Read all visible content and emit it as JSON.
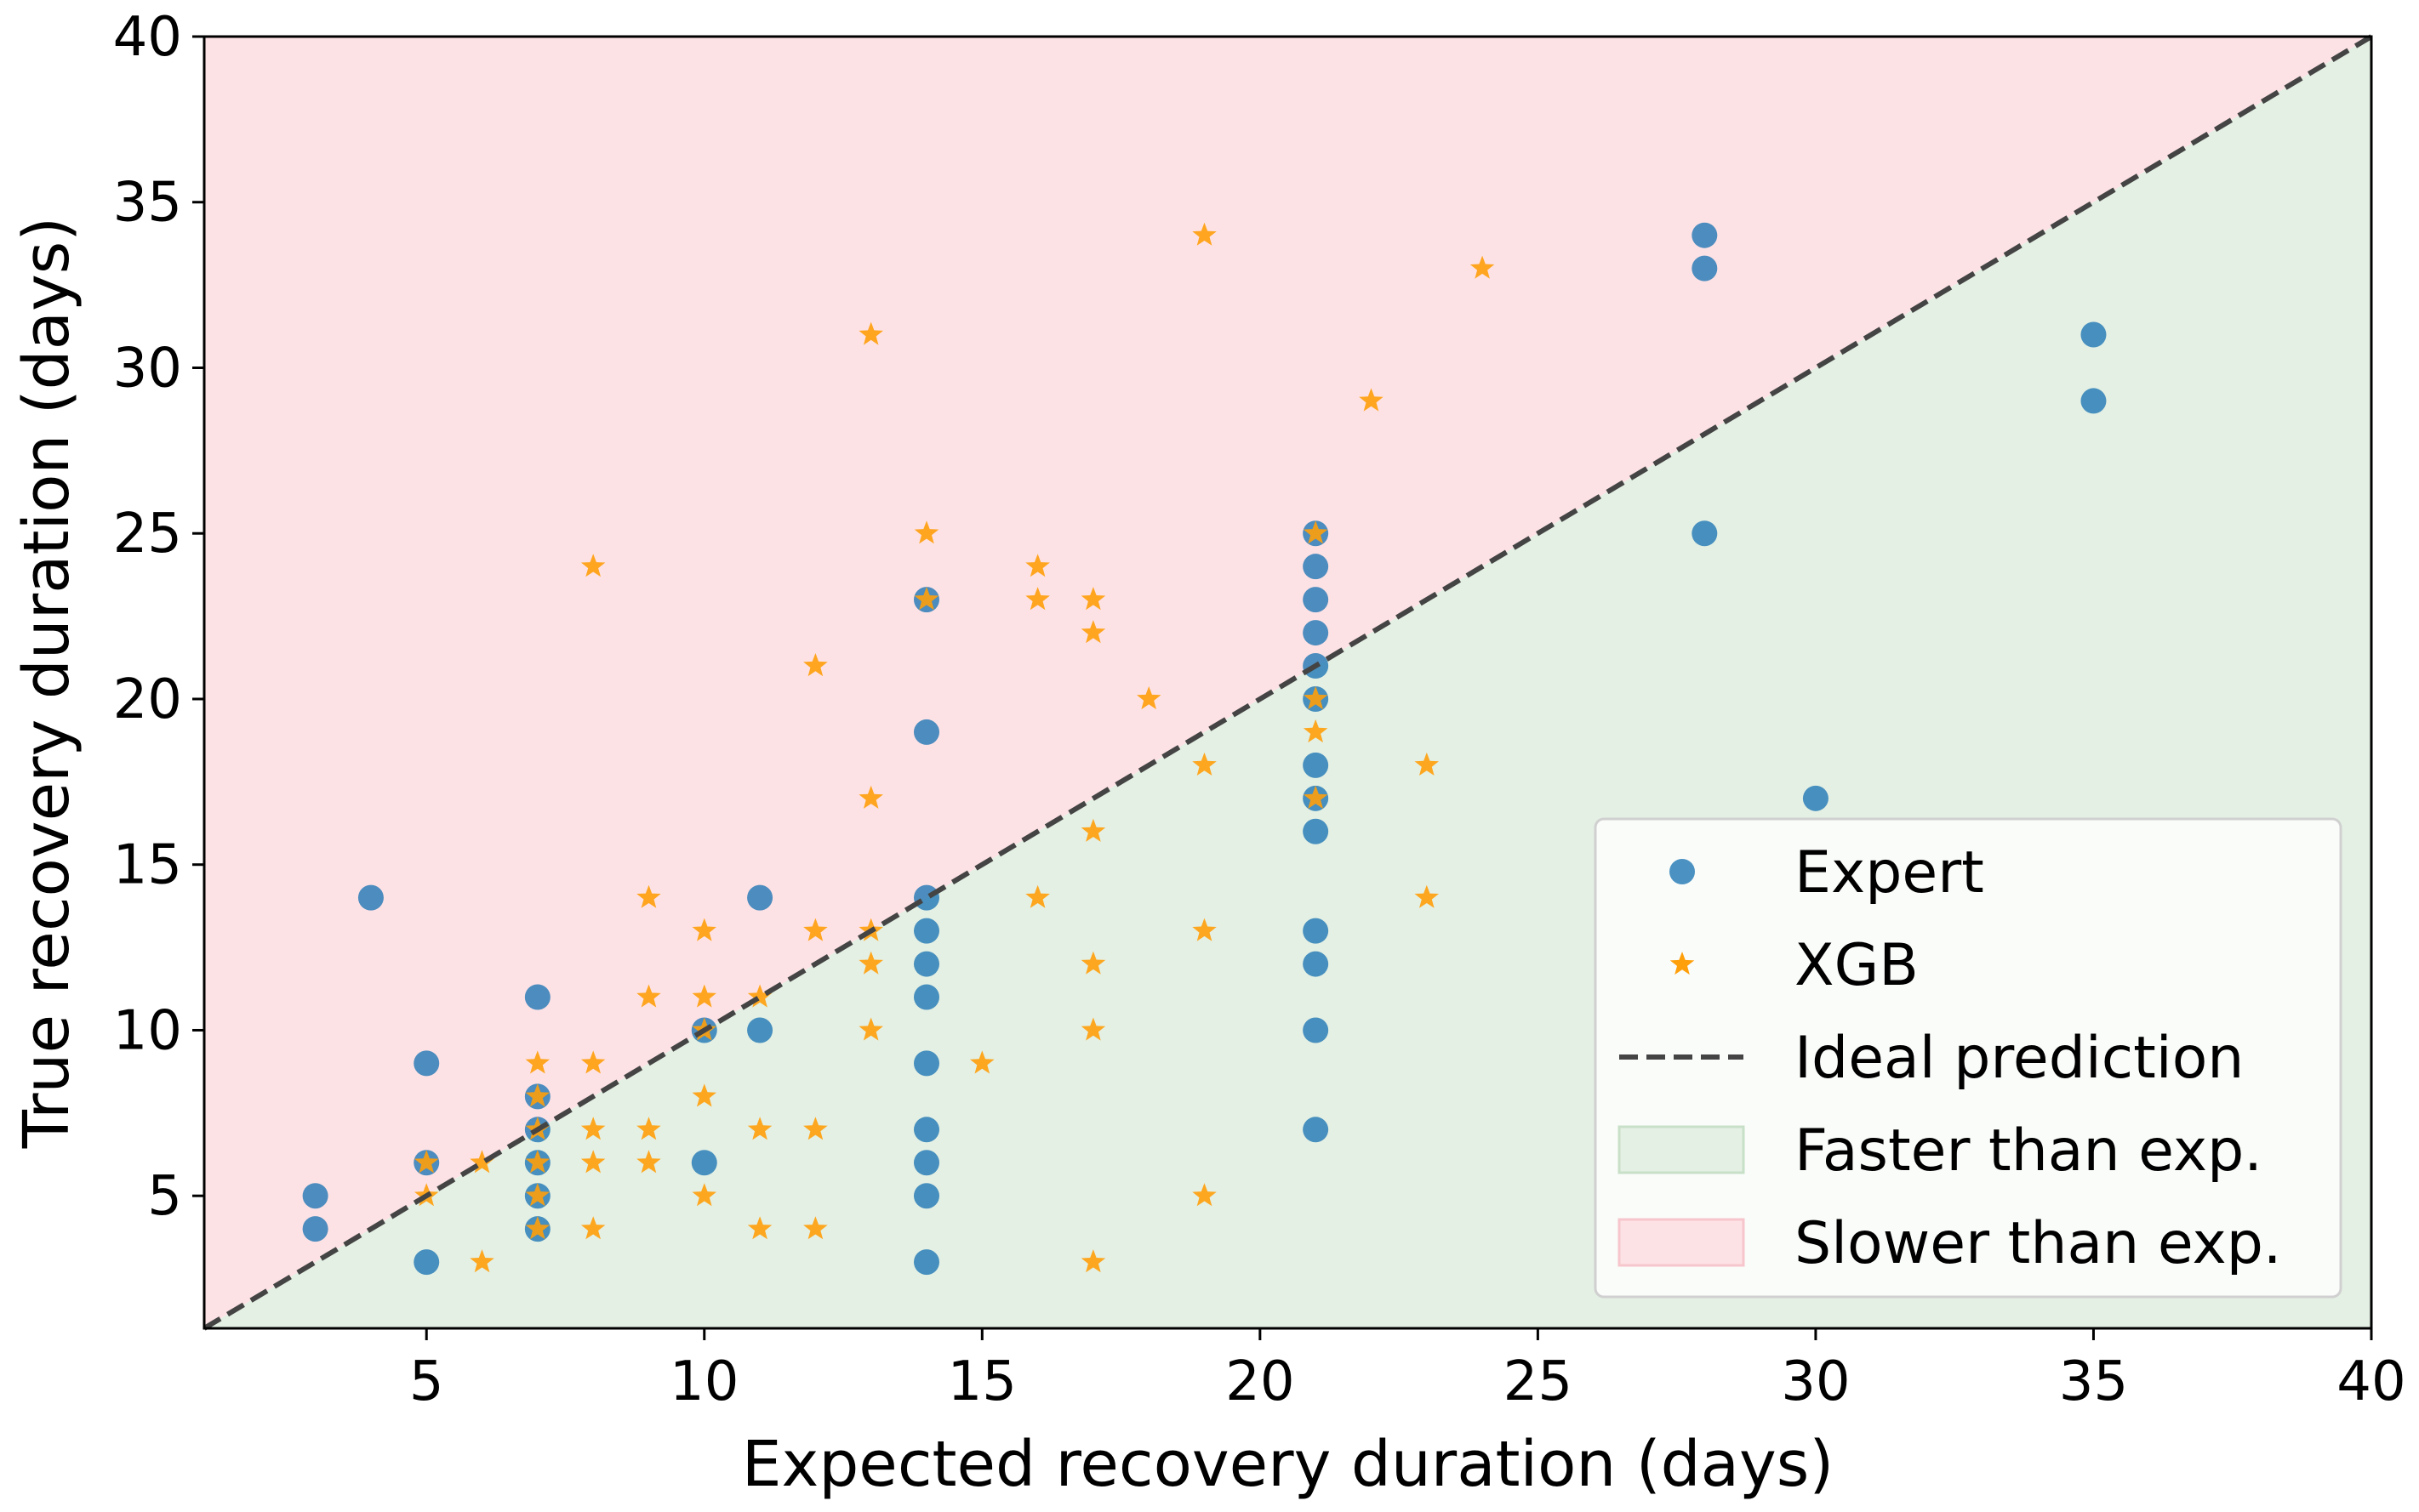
{
  "chart_data": {
    "type": "scatter",
    "title": "",
    "xlabel": "Expected recovery duration (days)",
    "ylabel": "True recovery duration (days)",
    "xlim": [
      1,
      40
    ],
    "ylim": [
      1,
      40
    ],
    "xticks": [
      5,
      10,
      15,
      20,
      25,
      30,
      35,
      40
    ],
    "yticks": [
      5,
      10,
      15,
      20,
      25,
      30,
      35,
      40
    ],
    "grid": false,
    "legend_position": "lower-right",
    "colors": {
      "expert": "#1f77b4",
      "xgb": "#ff9f0a",
      "ideal": "#444444",
      "faster": "#e4f0e4",
      "slower": "#fde2e5"
    },
    "series": [
      {
        "name": "Expert",
        "marker": "circle",
        "points": [
          [
            3,
            5
          ],
          [
            3,
            4
          ],
          [
            4,
            14
          ],
          [
            5,
            9
          ],
          [
            5,
            6
          ],
          [
            5,
            3
          ],
          [
            7,
            11
          ],
          [
            7,
            8
          ],
          [
            7,
            7
          ],
          [
            7,
            6
          ],
          [
            7,
            5
          ],
          [
            7,
            4
          ],
          [
            10,
            10
          ],
          [
            10,
            6
          ],
          [
            11,
            14
          ],
          [
            11,
            10
          ],
          [
            14,
            23
          ],
          [
            14,
            19
          ],
          [
            14,
            14
          ],
          [
            14,
            13
          ],
          [
            14,
            12
          ],
          [
            14,
            11
          ],
          [
            14,
            9
          ],
          [
            14,
            7
          ],
          [
            14,
            6
          ],
          [
            14,
            5
          ],
          [
            14,
            3
          ],
          [
            21,
            25
          ],
          [
            21,
            24
          ],
          [
            21,
            23
          ],
          [
            21,
            22
          ],
          [
            21,
            21
          ],
          [
            21,
            20
          ],
          [
            21,
            18
          ],
          [
            21,
            17
          ],
          [
            21,
            16
          ],
          [
            21,
            13
          ],
          [
            21,
            12
          ],
          [
            21,
            10
          ],
          [
            21,
            7
          ],
          [
            28,
            34
          ],
          [
            28,
            33
          ],
          [
            28,
            25
          ],
          [
            30,
            17
          ],
          [
            35,
            31
          ],
          [
            35,
            29
          ]
        ]
      },
      {
        "name": "XGB",
        "marker": "star",
        "points": [
          [
            5,
            6
          ],
          [
            5,
            5
          ],
          [
            6,
            6
          ],
          [
            6,
            3
          ],
          [
            7,
            9
          ],
          [
            7,
            8
          ],
          [
            7,
            7
          ],
          [
            7,
            6
          ],
          [
            7,
            5
          ],
          [
            7,
            4
          ],
          [
            8,
            24
          ],
          [
            8,
            9
          ],
          [
            8,
            7
          ],
          [
            8,
            6
          ],
          [
            8,
            4
          ],
          [
            9,
            14
          ],
          [
            9,
            11
          ],
          [
            9,
            7
          ],
          [
            9,
            6
          ],
          [
            10,
            13
          ],
          [
            10,
            11
          ],
          [
            10,
            10
          ],
          [
            10,
            8
          ],
          [
            10,
            5
          ],
          [
            11,
            11
          ],
          [
            11,
            7
          ],
          [
            11,
            4
          ],
          [
            12,
            21
          ],
          [
            12,
            13
          ],
          [
            12,
            7
          ],
          [
            12,
            4
          ],
          [
            13,
            31
          ],
          [
            13,
            17
          ],
          [
            13,
            13
          ],
          [
            13,
            12
          ],
          [
            13,
            10
          ],
          [
            14,
            25
          ],
          [
            14,
            23
          ],
          [
            15,
            9
          ],
          [
            16,
            24
          ],
          [
            16,
            23
          ],
          [
            16,
            14
          ],
          [
            17,
            23
          ],
          [
            17,
            22
          ],
          [
            17,
            16
          ],
          [
            17,
            12
          ],
          [
            17,
            10
          ],
          [
            17,
            3
          ],
          [
            18,
            20
          ],
          [
            19,
            34
          ],
          [
            19,
            18
          ],
          [
            19,
            13
          ],
          [
            19,
            5
          ],
          [
            21,
            25
          ],
          [
            21,
            20
          ],
          [
            21,
            19
          ],
          [
            21,
            17
          ],
          [
            22,
            29
          ],
          [
            23,
            18
          ],
          [
            23,
            14
          ],
          [
            24,
            33
          ]
        ]
      }
    ],
    "reference_line": {
      "name": "Ideal prediction",
      "from": [
        1,
        1
      ],
      "to": [
        40,
        40
      ],
      "style": "dashed"
    },
    "regions": [
      {
        "name": "Faster than exp.",
        "side": "below-diagonal"
      },
      {
        "name": "Slower than exp.",
        "side": "above-diagonal"
      }
    ],
    "legend": [
      "Expert",
      "XGB",
      "Ideal prediction",
      "Faster than exp.",
      "Slower than exp."
    ]
  }
}
